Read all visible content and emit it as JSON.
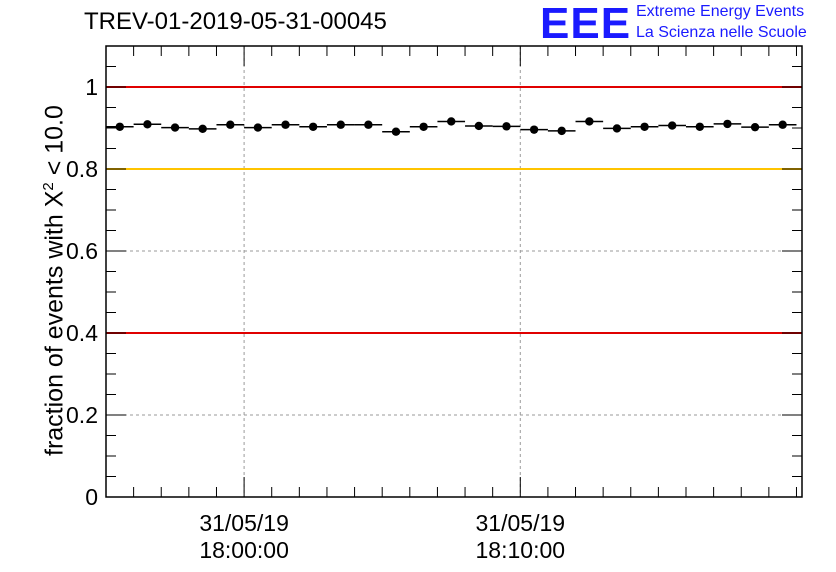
{
  "header": {
    "title": "TREV-01-2019-05-31-00045"
  },
  "logo": {
    "mark": "EEE",
    "line1": "Extreme Energy Events",
    "line2": "La Scienza nelle Scuole"
  },
  "colors": {
    "threshold_red": "#e00000",
    "threshold_yellow": "#ffc400",
    "marker": "#000000",
    "grid": "#9a9a9a",
    "logo_blue": "#1a1aff"
  },
  "chart_data": {
    "type": "scatter",
    "title": "TREV-01-2019-05-31-00045",
    "xlabel": "",
    "ylabel_prefix": "fraction of events with X",
    "ylabel_sup": "2",
    "ylabel_suffix": " < 10.0",
    "ylim": [
      0,
      1.1
    ],
    "xlim_minutes": [
      -5,
      20.2
    ],
    "yticks": [
      "0",
      "0.2",
      "0.4",
      "0.6",
      "0.8",
      "1"
    ],
    "ytick_values": [
      0,
      0.2,
      0.4,
      0.6,
      0.8,
      1.0
    ],
    "xtick_labels": [
      {
        "minute": 0,
        "date": "31/05/19",
        "time": "18:00:00"
      },
      {
        "minute": 10,
        "date": "31/05/19",
        "time": "18:10:00"
      }
    ],
    "grid": true,
    "reference_lines": [
      {
        "value": 1.0,
        "color": "red"
      },
      {
        "value": 0.8,
        "color": "yellow"
      },
      {
        "value": 0.4,
        "color": "red"
      }
    ],
    "bin_width_minutes": 1.0,
    "x": [
      -4.5,
      -3.5,
      -2.5,
      -1.5,
      -0.5,
      0.5,
      1.5,
      2.5,
      3.5,
      4.5,
      5.5,
      6.5,
      7.5,
      8.5,
      9.5,
      10.5,
      11.5,
      12.5,
      13.5,
      14.5,
      15.5,
      16.5,
      17.5,
      18.5,
      19.5
    ],
    "values": [
      0.903,
      0.909,
      0.901,
      0.898,
      0.908,
      0.901,
      0.908,
      0.903,
      0.908,
      0.908,
      0.891,
      0.903,
      0.916,
      0.905,
      0.904,
      0.896,
      0.893,
      0.916,
      0.899,
      0.903,
      0.906,
      0.903,
      0.91,
      0.902,
      0.908
    ]
  }
}
